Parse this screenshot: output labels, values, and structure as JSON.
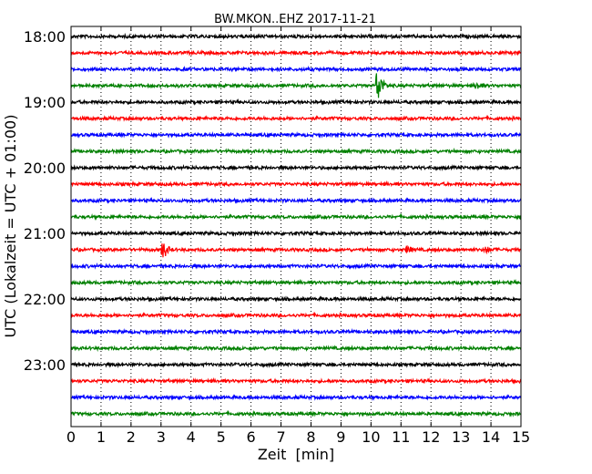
{
  "chart_data": {
    "type": "line",
    "title": "BW.MKON..EHZ 2017-11-21",
    "xlabel": "Zeit  [min]",
    "ylabel": "UTC (Lokalzeit = UTC + 01:00)",
    "xlim": [
      0,
      15
    ],
    "x_ticks": [
      "0",
      "1",
      "2",
      "3",
      "4",
      "5",
      "6",
      "7",
      "8",
      "9",
      "10",
      "11",
      "12",
      "13",
      "14",
      "15"
    ],
    "y_ticks": [
      "18:00",
      "19:00",
      "20:00",
      "21:00",
      "22:00",
      "23:00"
    ],
    "grid": "vertical-dotted",
    "trace_start_times": [
      "18:00",
      "18:15",
      "18:30",
      "18:45",
      "19:00",
      "19:15",
      "19:30",
      "19:45",
      "20:00",
      "20:15",
      "20:30",
      "20:45",
      "21:00",
      "21:15",
      "21:30",
      "21:45",
      "22:00",
      "22:15",
      "22:30",
      "22:45",
      "23:00",
      "23:15",
      "23:30",
      "23:45"
    ],
    "trace_colors": [
      "#000000",
      "#ff0000",
      "#0000ff",
      "#008000"
    ],
    "events": [
      {
        "trace": "18:45",
        "minute": 10.2,
        "amplitude": "large"
      },
      {
        "trace": "18:45",
        "minute": 13.5,
        "amplitude": "small"
      },
      {
        "trace": "21:15",
        "minute": 3.05,
        "amplitude": "medium"
      },
      {
        "trace": "21:15",
        "minute": 11.2,
        "amplitude": "small"
      },
      {
        "trace": "21:15",
        "minute": 13.8,
        "amplitude": "small"
      }
    ]
  }
}
